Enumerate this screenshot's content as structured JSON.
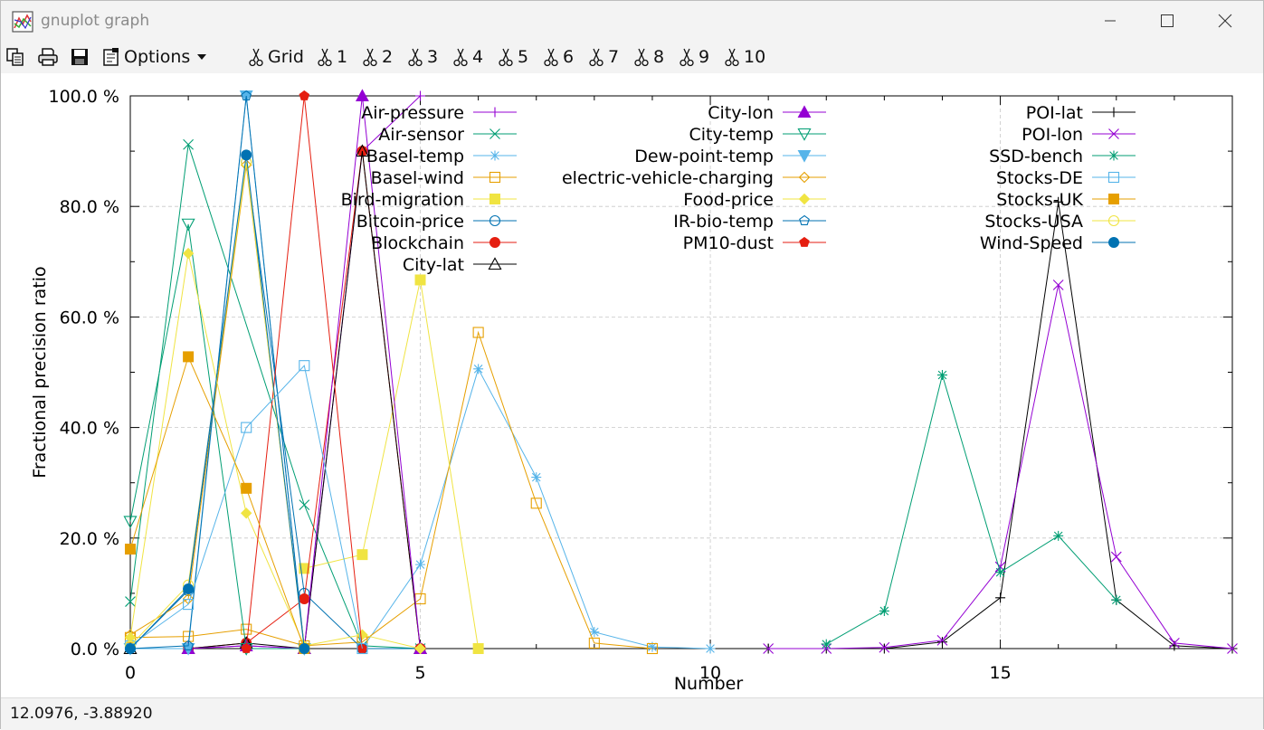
{
  "window": {
    "title": "gnuplot graph"
  },
  "toolbar": {
    "options_label": "Options",
    "grid_label": "Grid",
    "items": [
      "1",
      "2",
      "3",
      "4",
      "5",
      "6",
      "7",
      "8",
      "9",
      "10"
    ]
  },
  "status": {
    "coords": "12.0976, -3.88920"
  },
  "colors": {
    "purple": "#9400d3",
    "teal": "#009e73",
    "skyblue": "#56b4e9",
    "orange": "#e69f00",
    "yellow": "#f0e442",
    "blue": "#0072b2",
    "red": "#e51e10",
    "black": "#000000",
    "grid": "#c8c8c8",
    "chrome": "#f3f3f3"
  },
  "chart_data": {
    "type": "line",
    "xlabel": "Number",
    "ylabel": "Fractional precision ratio",
    "xlim": [
      0,
      19
    ],
    "ylim": [
      0,
      100
    ],
    "xticks": [
      0,
      5,
      10,
      15
    ],
    "yticks": [
      0,
      20,
      40,
      60,
      80,
      100
    ],
    "ytick_labels": [
      "0.0 %",
      "20.0 %",
      "40.0 %",
      "60.0 %",
      "80.0 %",
      "100.0 %"
    ],
    "grid": true,
    "legend_position": "top, three columns",
    "series": [
      {
        "name": "Air-pressure",
        "color": "purple",
        "marker": "plus",
        "points": [
          [
            1,
            0
          ],
          [
            2,
            0.5
          ],
          [
            3,
            0
          ],
          [
            4,
            90
          ],
          [
            5,
            100
          ]
        ]
      },
      {
        "name": "Air-sensor",
        "color": "teal",
        "marker": "x",
        "points": [
          [
            0,
            8.5
          ],
          [
            1,
            91.2
          ],
          [
            3,
            26
          ],
          [
            4,
            0.5
          ],
          [
            5,
            0
          ]
        ]
      },
      {
        "name": "Basel-temp",
        "color": "skyblue",
        "marker": "star",
        "points": [
          [
            4,
            0
          ],
          [
            5,
            15.2
          ],
          [
            6,
            50.6
          ],
          [
            7,
            31
          ],
          [
            8,
            3
          ],
          [
            9,
            0.3
          ],
          [
            10,
            0
          ]
        ]
      },
      {
        "name": "Basel-wind",
        "color": "orange",
        "marker": "box",
        "points": [
          [
            0,
            2
          ],
          [
            1,
            2.2
          ],
          [
            2,
            3.5
          ],
          [
            3,
            0.5
          ],
          [
            4,
            1.2
          ],
          [
            5,
            9
          ],
          [
            6,
            57.2
          ],
          [
            7,
            26.3
          ],
          [
            8,
            1
          ],
          [
            9,
            0
          ]
        ]
      },
      {
        "name": "Bird-migration",
        "color": "yellow",
        "marker": "fbox",
        "points": [
          [
            3,
            14.5
          ],
          [
            4,
            17
          ],
          [
            5,
            66.7
          ],
          [
            6,
            0
          ]
        ]
      },
      {
        "name": "Bitcoin-price",
        "color": "blue",
        "marker": "circle",
        "points": [
          [
            0,
            0
          ],
          [
            1,
            10.5
          ],
          [
            2,
            88
          ],
          [
            3,
            10
          ],
          [
            4,
            0
          ],
          [
            5,
            0
          ]
        ]
      },
      {
        "name": "Blockchain",
        "color": "red",
        "marker": "fcircle",
        "points": [
          [
            1,
            0
          ],
          [
            2,
            1
          ],
          [
            3,
            9
          ],
          [
            4,
            90
          ],
          [
            5,
            0
          ]
        ]
      },
      {
        "name": "City-lat",
        "color": "black",
        "marker": "triangle",
        "points": [
          [
            0,
            0
          ],
          [
            1,
            0
          ],
          [
            2,
            1
          ],
          [
            3,
            0
          ],
          [
            4,
            90
          ],
          [
            5,
            0
          ]
        ]
      },
      {
        "name": "City-lon",
        "color": "purple",
        "marker": "ftriangle",
        "points": [
          [
            1,
            0
          ],
          [
            2,
            0.5
          ],
          [
            3,
            0
          ],
          [
            4,
            100
          ],
          [
            5,
            0
          ]
        ]
      },
      {
        "name": "City-temp",
        "color": "teal",
        "marker": "dtriangle",
        "points": [
          [
            0,
            23
          ],
          [
            1,
            76.8
          ],
          [
            2,
            0
          ],
          [
            3,
            0
          ]
        ]
      },
      {
        "name": "Dew-point-temp",
        "color": "skyblue",
        "marker": "fdtriangle",
        "points": [
          [
            0,
            0
          ],
          [
            1,
            0
          ],
          [
            2,
            100
          ],
          [
            3,
            0
          ]
        ]
      },
      {
        "name": "electric-vehicle-charging",
        "color": "orange",
        "marker": "diamond",
        "points": [
          [
            0,
            2.5
          ],
          [
            1,
            9
          ],
          [
            2,
            87.5
          ],
          [
            3,
            0.5
          ]
        ]
      },
      {
        "name": "Food-price",
        "color": "yellow",
        "marker": "fdiamond",
        "points": [
          [
            0,
            2
          ],
          [
            1,
            71.5
          ],
          [
            2,
            24.5
          ],
          [
            3,
            0.5
          ],
          [
            4,
            2.5
          ],
          [
            5,
            0
          ]
        ]
      },
      {
        "name": "IR-bio-temp",
        "color": "blue",
        "marker": "pentagon",
        "points": [
          [
            0,
            0
          ],
          [
            1,
            0.5
          ],
          [
            2,
            100
          ],
          [
            3,
            0
          ]
        ]
      },
      {
        "name": "PM10-dust",
        "color": "red",
        "marker": "fpentagon",
        "points": [
          [
            2,
            0
          ],
          [
            3,
            100
          ],
          [
            4,
            0
          ]
        ]
      },
      {
        "name": "POI-lat",
        "color": "black",
        "marker": "plus",
        "points": [
          [
            11,
            0
          ],
          [
            12,
            0
          ],
          [
            13,
            0
          ],
          [
            14,
            1.2
          ],
          [
            15,
            9.2
          ],
          [
            16,
            80.8
          ],
          [
            17,
            8.8
          ],
          [
            18,
            0.5
          ],
          [
            19,
            0
          ]
        ]
      },
      {
        "name": "POI-lon",
        "color": "purple",
        "marker": "x",
        "points": [
          [
            11,
            0
          ],
          [
            12,
            0
          ],
          [
            13,
            0.2
          ],
          [
            14,
            1.5
          ],
          [
            15,
            14.8
          ],
          [
            16,
            65.8
          ],
          [
            17,
            16.6
          ],
          [
            18,
            1
          ],
          [
            19,
            0
          ]
        ]
      },
      {
        "name": "SSD-bench",
        "color": "teal",
        "marker": "star",
        "points": [
          [
            12,
            0.8
          ],
          [
            13,
            6.8
          ],
          [
            14,
            49.5
          ],
          [
            15,
            13.8
          ],
          [
            16,
            20.4
          ],
          [
            17,
            8.8
          ]
        ]
      },
      {
        "name": "Stocks-DE",
        "color": "skyblue",
        "marker": "box",
        "points": [
          [
            0,
            0.5
          ],
          [
            1,
            8
          ],
          [
            2,
            40
          ],
          [
            3,
            51.2
          ],
          [
            4,
            0
          ]
        ]
      },
      {
        "name": "Stocks-UK",
        "color": "orange",
        "marker": "fbox",
        "points": [
          [
            0,
            18
          ],
          [
            1,
            52.8
          ],
          [
            2,
            29
          ],
          [
            3,
            0
          ]
        ]
      },
      {
        "name": "Stocks-USA",
        "color": "yellow",
        "marker": "circle",
        "points": [
          [
            0,
            0.5
          ],
          [
            1,
            11.5
          ],
          [
            2,
            88
          ],
          [
            3,
            0
          ]
        ]
      },
      {
        "name": "Wind-Speed",
        "color": "blue",
        "marker": "fcircle",
        "points": [
          [
            0,
            0
          ],
          [
            1,
            10.8
          ],
          [
            2,
            89.3
          ],
          [
            3,
            0
          ]
        ]
      }
    ]
  }
}
